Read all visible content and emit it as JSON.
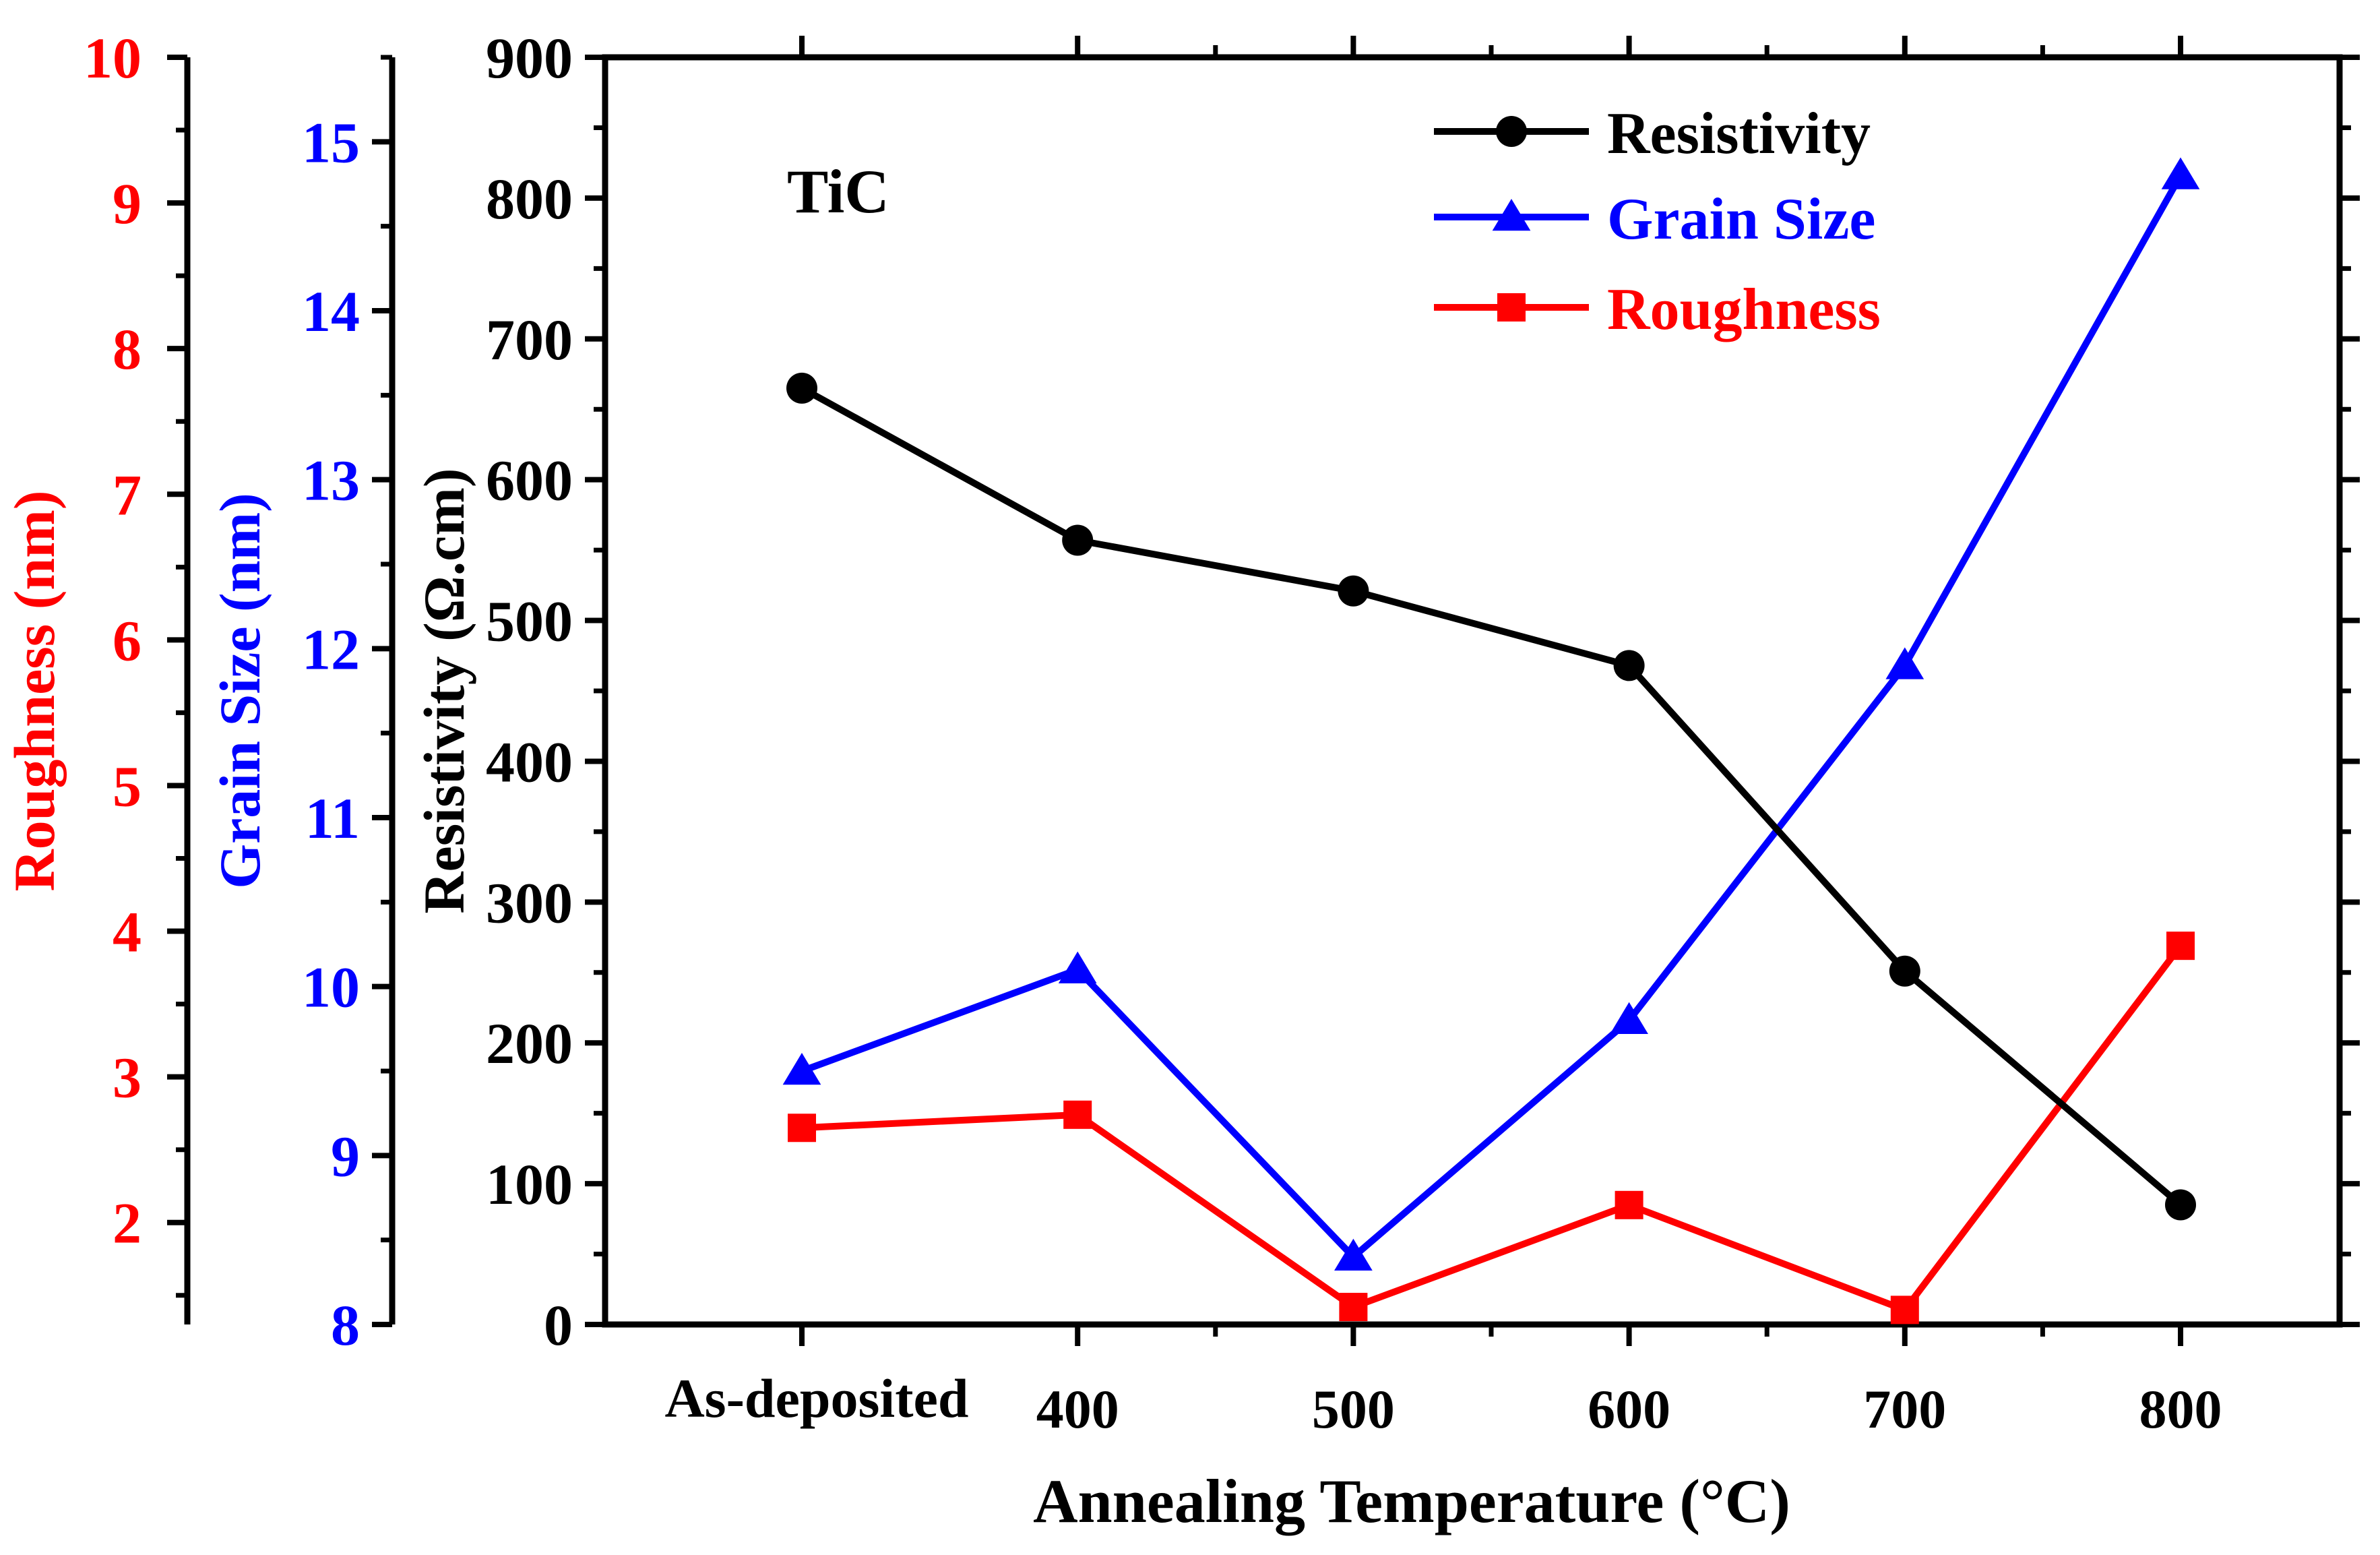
{
  "chart_data": {
    "type": "line",
    "annotation": "TiC",
    "xlabel": "Annealing Temperature (°C)",
    "categories": [
      "As-deposited",
      "400",
      "500",
      "600",
      "700",
      "800"
    ],
    "x_positions": [
      300,
      400,
      500,
      600,
      700,
      800
    ],
    "x_min": 300,
    "x_max": 800,
    "axes": {
      "resistivity": {
        "label": "Resistivity (Ω.cm)",
        "ylim": [
          0,
          900
        ],
        "ticks": [
          0,
          100,
          200,
          300,
          400,
          500,
          600,
          700,
          800,
          900
        ],
        "color": "#000000"
      },
      "grain_size": {
        "label": "Grain Size (nm)",
        "ylim": [
          8,
          15.5
        ],
        "ticks": [
          8,
          9,
          10,
          11,
          12,
          13,
          14,
          15
        ],
        "color": "#0000ff"
      },
      "roughness": {
        "label": "Roughness (nm)",
        "ylim": [
          1.3,
          10
        ],
        "ticks": [
          2,
          3,
          4,
          5,
          6,
          7,
          8,
          9,
          10
        ],
        "color": "#ff0000"
      }
    },
    "series": [
      {
        "name": "Resistivity",
        "axis": "resistivity",
        "color": "#000000",
        "marker": "circle",
        "values": [
          665,
          557,
          521,
          468,
          251,
          85
        ]
      },
      {
        "name": "Grain Size",
        "axis": "grain_size",
        "color": "#0000ff",
        "marker": "triangle",
        "values": [
          9.5,
          10.1,
          8.4,
          9.8,
          11.9,
          14.8
        ]
      },
      {
        "name": "Roughness",
        "axis": "roughness",
        "color": "#ff0000",
        "marker": "square",
        "values": [
          2.65,
          2.74,
          1.42,
          2.12,
          1.4,
          3.9
        ]
      }
    ],
    "legend": {
      "position": "top-right",
      "entries": [
        "Resistivity",
        "Grain Size",
        "Roughness"
      ]
    }
  }
}
